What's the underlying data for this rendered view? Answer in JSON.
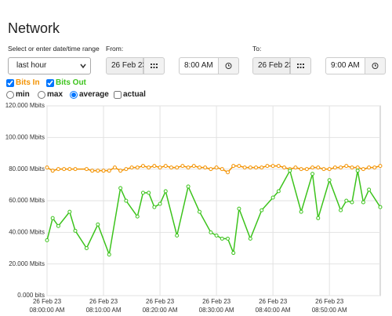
{
  "header": {
    "title": "Network"
  },
  "controls": {
    "range_label": "Select or enter date/time range",
    "range_select": "last hour",
    "from": {
      "label": "From:",
      "date": "26 Feb 23",
      "time": "8:00 AM"
    },
    "to": {
      "label": "To:",
      "date": "26 Feb 23",
      "time": "9:00 AM"
    },
    "modes": [
      "min",
      "max",
      "average",
      "actual"
    ]
  },
  "chart_data": {
    "type": "line",
    "grid": true,
    "ylim": [
      0,
      120
    ],
    "yticks": [
      {
        "value": 0,
        "label": "0.000 bits"
      },
      {
        "value": 20,
        "label": "20.000 Mbits"
      },
      {
        "value": 40,
        "label": "40.000 Mbits"
      },
      {
        "value": 60,
        "label": "60.000 Mbits"
      },
      {
        "value": 80,
        "label": "80.000 Mbits"
      },
      {
        "value": 100,
        "label": "100.000 Mbits"
      },
      {
        "value": 120,
        "label": "120.000 Mbits"
      }
    ],
    "xlim": [
      "08:00:00 AM",
      "08:59:00 AM"
    ],
    "xticks": [
      {
        "value": "08:00:00 AM",
        "label": [
          "26 Feb 23",
          "08:00:00 AM"
        ]
      },
      {
        "value": "08:10:00 AM",
        "label": [
          "26 Feb 23",
          "08:10:00 AM"
        ]
      },
      {
        "value": "08:20:00 AM",
        "label": [
          "26 Feb 23",
          "08:20:00 AM"
        ]
      },
      {
        "value": "08:30:00 AM",
        "label": [
          "26 Feb 23",
          "08:30:00 AM"
        ]
      },
      {
        "value": "08:40:00 AM",
        "label": [
          "26 Feb 23",
          "08:40:00 AM"
        ]
      },
      {
        "value": "08:50:00 AM",
        "label": [
          "26 Feb 23",
          "08:50:00 AM"
        ]
      }
    ],
    "series": [
      {
        "name": "Bits In",
        "color": "#f39200",
        "x": [
          "08:00:00 AM",
          "08:01:00 AM",
          "08:02:00 AM",
          "08:03:00 AM",
          "08:04:00 AM",
          "08:05:00 AM",
          "08:07:00 AM",
          "08:08:00 AM",
          "08:09:00 AM",
          "08:10:00 AM",
          "08:11:00 AM",
          "08:12:00 AM",
          "08:13:00 AM",
          "08:14:00 AM",
          "08:15:00 AM",
          "08:16:00 AM",
          "08:17:00 AM",
          "08:18:00 AM",
          "08:19:00 AM",
          "08:20:00 AM",
          "08:21:00 AM",
          "08:22:00 AM",
          "08:23:00 AM",
          "08:24:00 AM",
          "08:25:00 AM",
          "08:26:00 AM",
          "08:27:00 AM",
          "08:28:00 AM",
          "08:29:00 AM",
          "08:30:00 AM",
          "08:31:00 AM",
          "08:32:00 AM",
          "08:33:00 AM",
          "08:34:00 AM",
          "08:35:00 AM",
          "08:36:00 AM",
          "08:37:00 AM",
          "08:38:00 AM",
          "08:39:00 AM",
          "08:40:00 AM",
          "08:41:00 AM",
          "08:42:00 AM",
          "08:43:00 AM",
          "08:44:00 AM",
          "08:45:00 AM",
          "08:46:00 AM",
          "08:47:00 AM",
          "08:48:00 AM",
          "08:49:00 AM",
          "08:50:00 AM",
          "08:51:00 AM",
          "08:52:00 AM",
          "08:53:00 AM",
          "08:54:00 AM",
          "08:55:00 AM",
          "08:56:00 AM",
          "08:57:00 AM",
          "08:58:00 AM",
          "08:59:00 AM"
        ],
        "values": [
          81,
          79,
          80,
          80,
          80,
          80,
          80,
          79,
          79,
          79,
          79,
          81,
          79,
          80,
          81,
          81,
          82,
          81,
          82,
          81,
          82,
          81,
          81,
          82,
          81,
          82,
          81,
          81,
          80,
          81,
          80,
          78,
          82,
          82,
          81,
          81,
          81,
          81,
          82,
          82,
          82,
          81,
          80,
          81,
          80,
          80,
          81,
          81,
          80,
          80,
          81,
          81,
          82,
          81,
          81,
          80,
          81,
          81,
          82
        ]
      },
      {
        "name": "Bits Out",
        "color": "#3cc31c",
        "x": [
          "08:00:00 AM",
          "08:01:00 AM",
          "08:02:00 AM",
          "08:04:00 AM",
          "08:05:00 AM",
          "08:07:00 AM",
          "08:09:00 AM",
          "08:11:00 AM",
          "08:13:00 AM",
          "08:14:00 AM",
          "08:16:00 AM",
          "08:17:00 AM",
          "08:18:00 AM",
          "08:19:00 AM",
          "08:20:00 AM",
          "08:21:00 AM",
          "08:23:00 AM",
          "08:25:00 AM",
          "08:27:00 AM",
          "08:29:00 AM",
          "08:30:00 AM",
          "08:31:00 AM",
          "08:32:00 AM",
          "08:33:00 AM",
          "08:34:00 AM",
          "08:36:00 AM",
          "08:38:00 AM",
          "08:40:00 AM",
          "08:41:00 AM",
          "08:43:00 AM",
          "08:45:00 AM",
          "08:47:00 AM",
          "08:48:00 AM",
          "08:50:00 AM",
          "08:52:00 AM",
          "08:53:00 AM",
          "08:54:00 AM",
          "08:55:00 AM",
          "08:56:00 AM",
          "08:57:00 AM",
          "08:59:00 AM"
        ],
        "values": [
          35,
          49,
          44,
          53,
          41,
          30,
          45,
          26,
          68,
          60,
          50,
          65,
          65,
          56,
          58,
          66,
          38,
          69,
          53,
          40,
          38,
          36,
          36,
          27,
          55,
          36,
          54,
          62,
          66,
          79,
          53,
          77,
          49,
          73,
          54,
          60,
          59,
          79,
          59,
          67,
          56
        ]
      }
    ]
  }
}
